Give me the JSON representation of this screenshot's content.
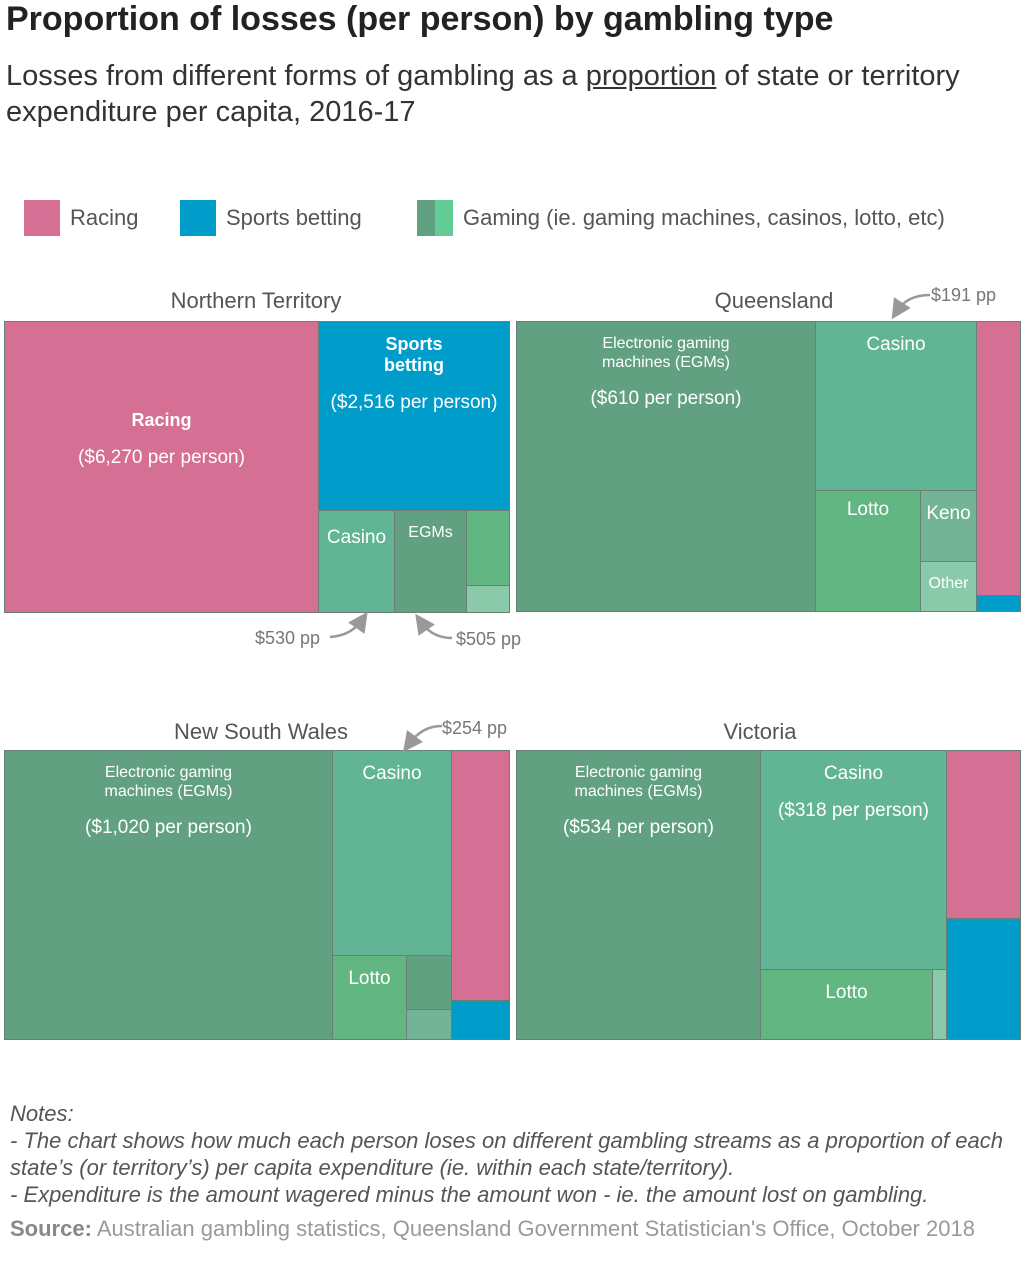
{
  "chart_data": {
    "type": "treemap",
    "title": "Proportion of losses (per person) by gambling type",
    "subtitle": {
      "before": "Losses from different forms of gambling as a ",
      "link": "proportion",
      "after": " of state or territory expenditure per capita, 2016-17"
    },
    "legend": [
      {
        "label": "Racing",
        "colors": [
          "#d56f93"
        ]
      },
      {
        "label": "Sports betting",
        "colors": [
          "#009dcb"
        ]
      },
      {
        "label": "Gaming (ie. gaming machines, casinos, lotto, etc)",
        "colors": [
          "#62a082",
          "#62cc94"
        ]
      }
    ],
    "colors": {
      "racing": "#d56f93",
      "sports": "#009dcb",
      "egms": "#62a082",
      "casino": "#61b594",
      "lotto": "#62b682",
      "keno": "#72b495",
      "other": "#8ac9a9"
    },
    "panels": [
      {
        "name": "Northern Territory",
        "tiles": [
          {
            "type": "racing",
            "label": "Racing",
            "value": "($6,270 per person)",
            "per_person": 6270
          },
          {
            "type": "sports",
            "label": "Sports\nbetting",
            "value": "($2,516 per person)",
            "per_person": 2516
          },
          {
            "type": "casino",
            "label": "Casino",
            "value": "",
            "per_person": 530
          },
          {
            "type": "egms",
            "label": "EGMs",
            "value": "",
            "per_person": 505
          },
          {
            "type": "lotto",
            "label": "",
            "value": ""
          },
          {
            "type": "other",
            "label": "",
            "value": ""
          }
        ],
        "annotations": [
          "$530 pp",
          "$505 pp"
        ]
      },
      {
        "name": "Queensland",
        "tiles": [
          {
            "type": "egms",
            "label": "Electronic gaming\nmachines (EGMs)",
            "value": "($610 per person)",
            "per_person": 610
          },
          {
            "type": "casino",
            "label": "Casino",
            "value": ""
          },
          {
            "type": "lotto",
            "label": "Lotto",
            "value": ""
          },
          {
            "type": "keno",
            "label": "Keno",
            "value": ""
          },
          {
            "type": "other",
            "label": "Other",
            "value": ""
          },
          {
            "type": "racing",
            "label": "",
            "value": "",
            "per_person": 191
          },
          {
            "type": "sports",
            "label": "",
            "value": ""
          }
        ],
        "annotations": [
          "$191 pp"
        ]
      },
      {
        "name": "New South Wales",
        "tiles": [
          {
            "type": "egms",
            "label": "Electronic gaming\nmachines (EGMs)",
            "value": "($1,020 per person)",
            "per_person": 1020
          },
          {
            "type": "casino",
            "label": "Casino",
            "value": ""
          },
          {
            "type": "lotto",
            "label": "Lotto",
            "value": ""
          },
          {
            "type": "egms",
            "label": "",
            "value": ""
          },
          {
            "type": "keno",
            "label": "",
            "value": ""
          },
          {
            "type": "racing",
            "label": "",
            "value": "",
            "per_person": 254
          },
          {
            "type": "sports",
            "label": "",
            "value": ""
          }
        ],
        "annotations": [
          "$254 pp"
        ]
      },
      {
        "name": "Victoria",
        "tiles": [
          {
            "type": "egms",
            "label": "Electronic gaming\nmachines (EGMs)",
            "value": "($534 per person)",
            "per_person": 534
          },
          {
            "type": "casino",
            "label": "Casino",
            "value": "($318 per person)",
            "per_person": 318
          },
          {
            "type": "lotto",
            "label": "Lotto",
            "value": ""
          },
          {
            "type": "other",
            "label": "",
            "value": ""
          },
          {
            "type": "racing",
            "label": "",
            "value": ""
          },
          {
            "type": "sports",
            "label": "",
            "value": ""
          }
        ],
        "annotations": []
      }
    ]
  },
  "notes": {
    "heading": "Notes:",
    "lines": [
      "- The chart shows how much each person loses on different gambling streams as a proportion of each state’s (or territory’s) per capita expenditure (ie. within each state/territory).",
      "- Expenditure is the amount wagered minus the amount won - ie. the amount lost on gambling."
    ]
  },
  "source": {
    "label": "Source:",
    "text": " Australian gambling statistics, Queensland Government Statistician's Office, October 2018"
  }
}
